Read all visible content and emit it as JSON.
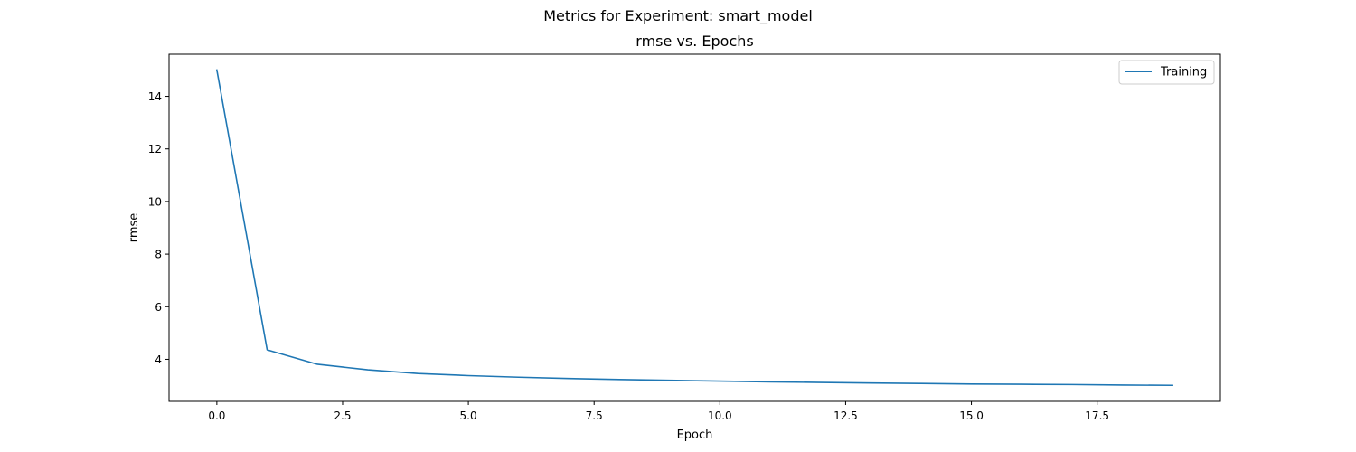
{
  "figure": {
    "suptitle": "Metrics for Experiment: smart_model"
  },
  "chart_data": {
    "type": "line",
    "title": "rmse vs. Epochs",
    "xlabel": "Epoch",
    "ylabel": "rmse",
    "xlim": [
      -0.95,
      19.95
    ],
    "ylim": [
      2.4,
      15.6
    ],
    "xticks": [
      0.0,
      2.5,
      5.0,
      7.5,
      10.0,
      12.5,
      15.0,
      17.5
    ],
    "xtick_labels": [
      "0.0",
      "2.5",
      "5.0",
      "7.5",
      "10.0",
      "12.5",
      "15.0",
      "17.5"
    ],
    "yticks": [
      4,
      6,
      8,
      10,
      12,
      14
    ],
    "ytick_labels": [
      "4",
      "6",
      "8",
      "10",
      "12",
      "14"
    ],
    "grid": false,
    "legend_position": "top-right",
    "series": [
      {
        "name": "Training",
        "color": "#1f77b4",
        "x": [
          0,
          1,
          2,
          3,
          4,
          5,
          6,
          7,
          8,
          9,
          10,
          11,
          12,
          13,
          14,
          15,
          16,
          17,
          18,
          19
        ],
        "y": [
          15.0,
          4.36,
          3.81,
          3.6,
          3.46,
          3.38,
          3.32,
          3.27,
          3.23,
          3.2,
          3.17,
          3.14,
          3.12,
          3.1,
          3.08,
          3.06,
          3.05,
          3.04,
          3.02,
          3.01
        ]
      }
    ]
  }
}
